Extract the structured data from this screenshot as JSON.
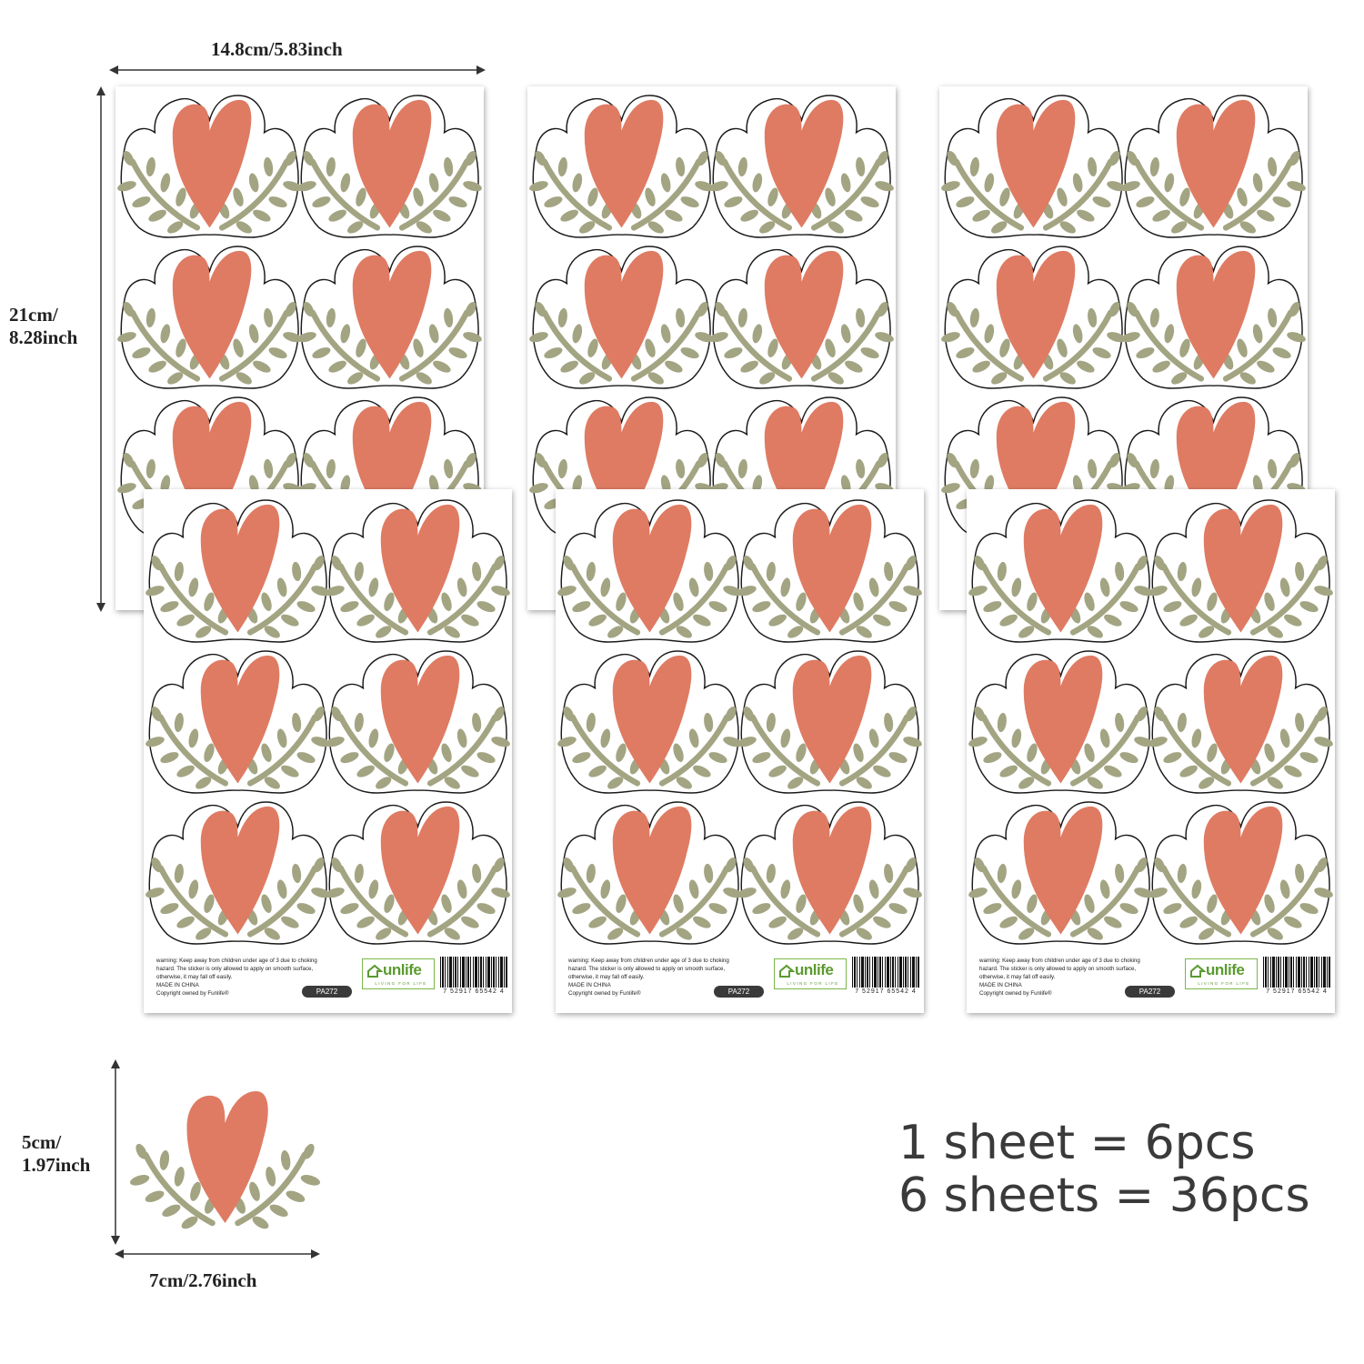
{
  "sheet": {
    "sticker_count": 6,
    "colors": {
      "heart": "#df7b63",
      "leaf": "#a3a482",
      "outline": "#1a1a1a"
    },
    "footer": {
      "warning_lines": [
        "warning: Keep away from children under age of 3 due to choking",
        "hazard. The sticker is only allowed to apply on smooth surface,",
        "otherwise, it may fall off easily.",
        "MADE IN CHINA",
        "Copyright owned by Funlife®"
      ],
      "brand": "unlife",
      "brand_tagline": "LIVING FOR LIFE",
      "product_code": "PA272",
      "barcode_number": "7 52917 65542 4"
    }
  },
  "dimensions": {
    "sheet_width": "14.8cm/5.83inch",
    "sheet_height_line1": "21cm/",
    "sheet_height_line2": "8.28inch",
    "sticker_height_line1": "5cm/",
    "sticker_height_line2": "1.97inch",
    "sticker_width": "7cm/2.76inch"
  },
  "summary": {
    "line1": "1 sheet = 6pcs",
    "line2": "6 sheets = 36pcs"
  }
}
